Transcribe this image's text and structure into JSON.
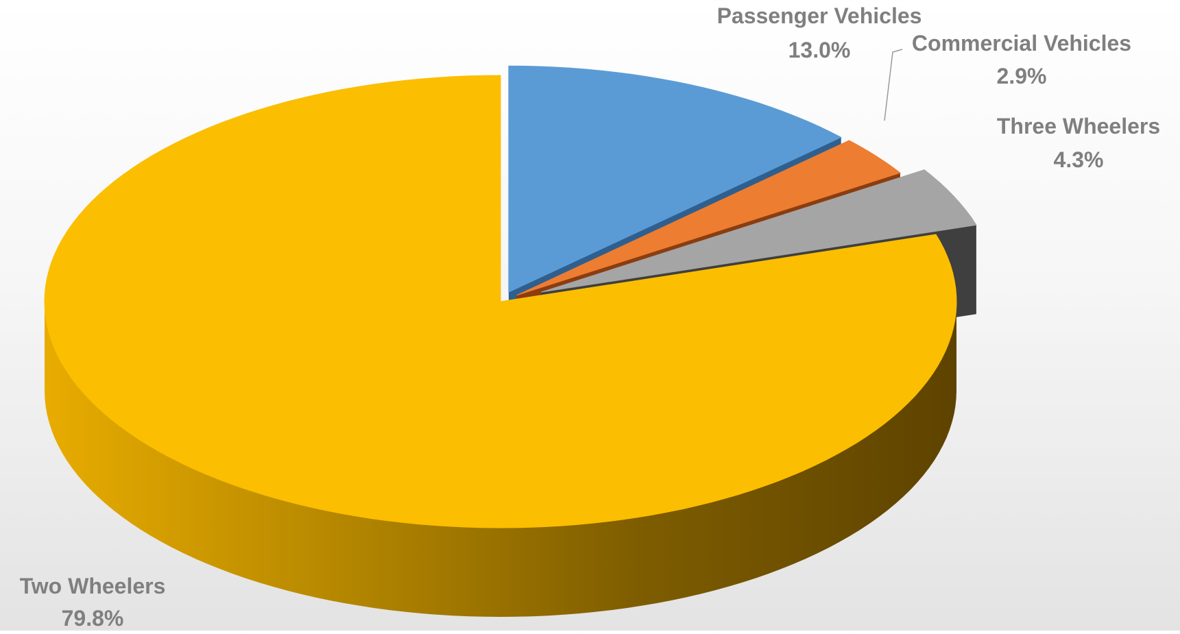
{
  "chart_data": {
    "type": "pie",
    "title": "",
    "style": "3d-exploded",
    "slices": [
      {
        "name": "Two Wheelers",
        "value": 79.8,
        "label": "79.8%",
        "color": "#FBBE00",
        "side_color": "#6B4B00"
      },
      {
        "name": "Passenger Vehicles",
        "value": 13.0,
        "label": "13.0%",
        "color": "#5B9BD5",
        "side_color": "#2E5F8F"
      },
      {
        "name": "Commercial Vehicles",
        "value": 2.9,
        "label": "2.9%",
        "color": "#ED7D31",
        "side_color": "#8A3D10"
      },
      {
        "name": "Three Wheelers",
        "value": 4.3,
        "label": "4.3%",
        "color": "#A5A5A5",
        "side_color": "#3F3F3F"
      }
    ],
    "legend": "none"
  }
}
